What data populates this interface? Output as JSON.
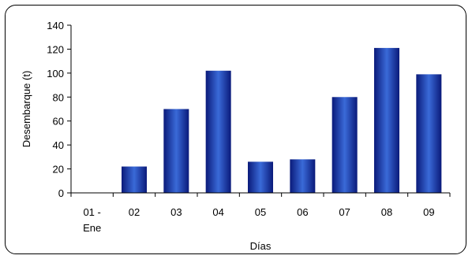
{
  "chart_data": {
    "type": "bar",
    "categories": [
      "01 - Ene",
      "02",
      "03",
      "04",
      "05",
      "06",
      "07",
      "08",
      "09"
    ],
    "category_lines": [
      [
        "01 -",
        "Ene"
      ],
      [
        "02"
      ],
      [
        "03"
      ],
      [
        "04"
      ],
      [
        "05"
      ],
      [
        "06"
      ],
      [
        "07"
      ],
      [
        "08"
      ],
      [
        "09"
      ]
    ],
    "values": [
      0,
      22,
      70,
      102,
      26,
      28,
      80,
      121,
      99
    ],
    "xlabel": "Días",
    "ylabel": "Desembarque (t)",
    "ylim": [
      0,
      140
    ],
    "yticks": [
      0,
      20,
      40,
      60,
      80,
      100,
      120,
      140
    ],
    "grid": false,
    "legend": "none",
    "colors": {
      "bar_dark": "#0a1a7a",
      "bar_light": "#3a6ad8"
    }
  }
}
